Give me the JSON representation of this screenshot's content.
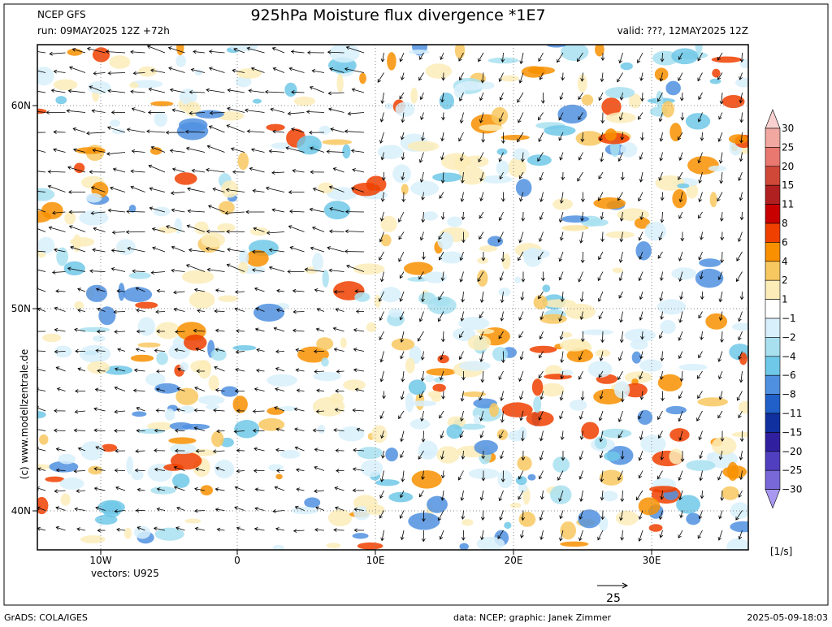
{
  "header": {
    "model": "NCEP GFS",
    "title": "925hPa Moisture flux divergence *1E7",
    "run": "run: 09MAY2025 12Z +72h",
    "valid": "valid: ???, 12MAY2025 12Z"
  },
  "map": {
    "lat_labels": [
      "60N",
      "50N",
      "40N"
    ],
    "lon_labels": [
      "10W",
      "0",
      "10E",
      "20E",
      "30E"
    ],
    "vectors": "vectors: U925",
    "watermark": "(c) www.modellzentrale.de",
    "vector_scale": "25"
  },
  "colorbar": {
    "labels": [
      "30",
      "25",
      "20",
      "15",
      "11",
      "8",
      "6",
      "4",
      "2",
      "1",
      "−1",
      "−2",
      "−4",
      "−6",
      "−8",
      "−11",
      "−15",
      "−20",
      "−25",
      "−30"
    ],
    "colors": [
      "#f8d0d0",
      "#f0a8a0",
      "#e87870",
      "#d04838",
      "#b02020",
      "#c80000",
      "#f04000",
      "#f89000",
      "#f8c860",
      "#fcecb8",
      "#ffffff",
      "#d8f0fc",
      "#a8e0f0",
      "#70c8e8",
      "#5090e0",
      "#2060c8",
      "#1030a0",
      "#3020a0",
      "#5040c0",
      "#7868d8",
      "#a898f0"
    ],
    "unit": "[1/s]"
  },
  "footer": {
    "grads": "GrADS: COLA/IGES",
    "credits": "data: NCEP; graphic: Janek Zimmer",
    "timestamp": "2025-05-09-18:03"
  }
}
